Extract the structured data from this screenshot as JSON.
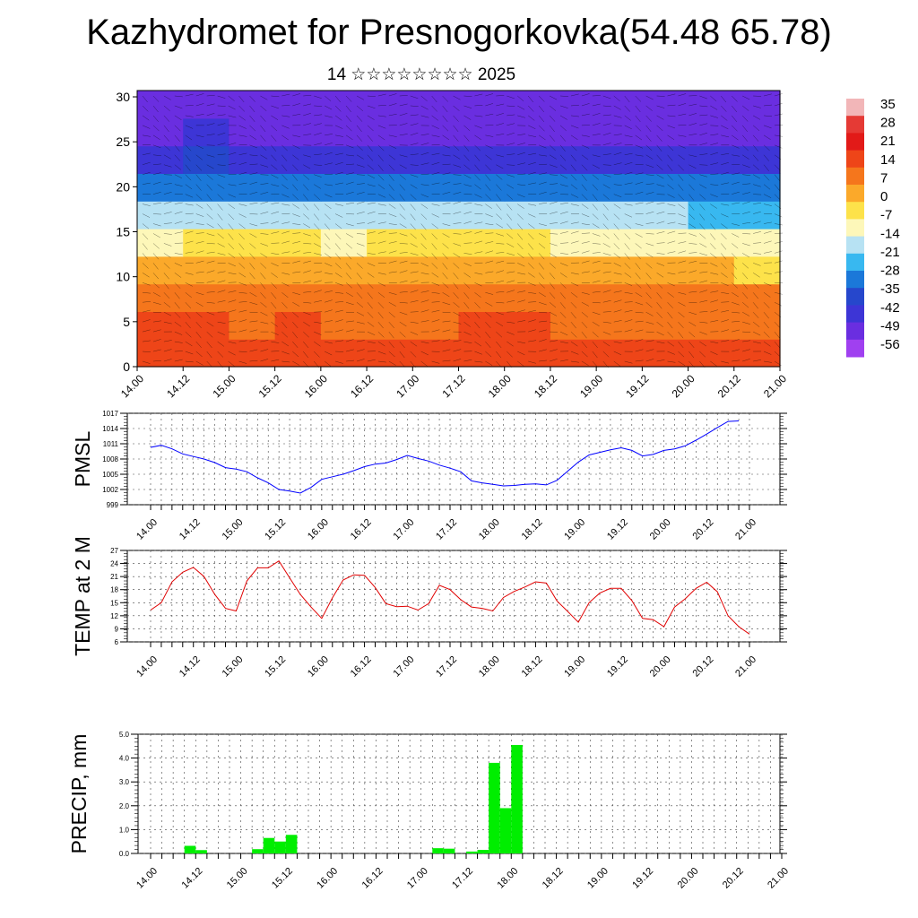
{
  "title": "Kazhydromet for Presnogorkovka(54.48 65.78)",
  "subtitle": "14 ☆☆☆☆☆☆☆☆ 2025",
  "chart_data": [
    {
      "type": "heatmap",
      "name": "cross-section",
      "x_ticks": [
        "14.00",
        "14.12",
        "15.00",
        "15.12",
        "16.00",
        "16.12",
        "17.00",
        "17.12",
        "18.00",
        "18.12",
        "19.00",
        "19.12",
        "20.00",
        "20.12",
        "21.00"
      ],
      "y_ticks": [
        "0",
        "5",
        "10",
        "15",
        "20",
        "25",
        "30"
      ],
      "ylim": [
        0,
        30.7
      ],
      "colorbar_labels": [
        "35",
        "28",
        "21",
        "14",
        "7",
        "0",
        "-7",
        "-14",
        "-21",
        "-28",
        "-35",
        "-42",
        "-49",
        "-56"
      ],
      "colorbar_colors": [
        "#f2b6b8",
        "#e53a35",
        "#e21a18",
        "#ee4518",
        "#f5761c",
        "#fba92a",
        "#fde24a",
        "#fdf7b9",
        "#b7e2f3",
        "#38b8f0",
        "#1b78d9",
        "#2647cc",
        "#3d35d6",
        "#6a2ee0",
        "#a040f0"
      ],
      "temp_grid": [
        [
          18,
          20,
          17,
          19,
          16,
          18,
          17,
          18,
          19,
          17,
          16,
          18,
          17,
          16
        ],
        [
          14,
          15,
          13,
          14,
          12,
          13,
          13,
          14,
          15,
          13,
          12,
          13,
          12,
          12
        ],
        [
          8,
          9,
          8,
          9,
          8,
          8,
          9,
          9,
          9,
          8,
          8,
          8,
          7,
          7
        ],
        [
          0,
          1,
          1,
          1,
          0,
          1,
          1,
          1,
          1,
          0,
          0,
          0,
          0,
          -1
        ],
        [
          -8,
          -7,
          -7,
          -7,
          -8,
          -7,
          -7,
          -7,
          -7,
          -8,
          -8,
          -9,
          -10,
          -11
        ],
        [
          -20,
          -18,
          -18,
          -19,
          -19,
          -18,
          -18,
          -18,
          -18,
          -19,
          -20,
          -21,
          -22,
          -22
        ],
        [
          -32,
          -30,
          -31,
          -31,
          -32,
          -31,
          -30,
          -30,
          -31,
          -32,
          -33,
          -34,
          -34,
          -35
        ],
        [
          -44,
          -42,
          -43,
          -44,
          -45,
          -44,
          -43,
          -43,
          -44,
          -44,
          -45,
          -46,
          -46,
          -47
        ],
        [
          -50,
          -49,
          -50,
          -51,
          -52,
          -51,
          -50,
          -50,
          -51,
          -51,
          -52,
          -52,
          -53,
          -53
        ],
        [
          -54,
          -53,
          -54,
          -55,
          -55,
          -55,
          -54,
          -54,
          -55,
          -55,
          -55,
          -56,
          -56,
          -56
        ]
      ]
    },
    {
      "type": "line",
      "name": "pmsl",
      "ylabel": "PMSL",
      "yticks": [
        "1017",
        "1014",
        "1011",
        "1008",
        "1005",
        "1002",
        "999"
      ],
      "ylim": [
        999,
        1017
      ],
      "x_ticks": [
        "14.00",
        "14.12",
        "15.00",
        "15.12",
        "16.00",
        "16.12",
        "17.00",
        "17.12",
        "18.00",
        "18.12",
        "19.00",
        "19.12",
        "20.00",
        "20.12",
        "21.00"
      ],
      "color": "#0000ff",
      "values": [
        1010.3,
        1010.7,
        1010,
        1009,
        1008.5,
        1008,
        1007.3,
        1006.3,
        1006,
        1005.5,
        1004.3,
        1003.3,
        1002,
        1001.7,
        1001.3,
        1002.4,
        1004,
        1004.5,
        1005,
        1005.7,
        1006.5,
        1007,
        1007.2,
        1007.9,
        1008.7,
        1008.1,
        1007.6,
        1006.8,
        1006.2,
        1005.5,
        1003.7,
        1003.3,
        1003,
        1002.7,
        1002.8,
        1003,
        1003.1,
        1002.9,
        1003.8,
        1005.6,
        1007.4,
        1008.8,
        1009.3,
        1009.8,
        1010.2,
        1009.7,
        1008.6,
        1008.9,
        1009.7,
        1010,
        1010.6,
        1011.7,
        1012.9,
        1014.2,
        1015.4,
        1015.5
      ]
    },
    {
      "type": "line",
      "name": "temp2m",
      "ylabel": "TEMP at 2 M",
      "yticks": [
        "27",
        "24",
        "21",
        "18",
        "15",
        "12",
        "9",
        "6"
      ],
      "ylim": [
        6,
        27
      ],
      "x_ticks": [
        "14.00",
        "14.12",
        "15.00",
        "15.12",
        "16.00",
        "16.12",
        "17.00",
        "17.12",
        "18.00",
        "18.12",
        "19.00",
        "19.12",
        "20.00",
        "20.12",
        "21.00"
      ],
      "color": "#e00000",
      "values": [
        13.3,
        15,
        19.8,
        22,
        23.1,
        21,
        16.9,
        13.7,
        13.1,
        20,
        23,
        23,
        24.6,
        20.7,
        16.9,
        14,
        11.4,
        16.1,
        20.2,
        21.4,
        21.3,
        18.5,
        14.8,
        14.1,
        14.2,
        13.3,
        14.8,
        19,
        18,
        15.7,
        14,
        13.7,
        13.1,
        16.2,
        17.6,
        18.6,
        19.8,
        19.5,
        15.4,
        13,
        10.5,
        15,
        17.2,
        18.3,
        18.3,
        15.5,
        11.4,
        11.1,
        9.5,
        14,
        15.9,
        18.3,
        19.7,
        17.5,
        12,
        9.5,
        7.8
      ]
    },
    {
      "type": "bar",
      "name": "precip",
      "ylabel": "PRECIP, mm",
      "yticks": [
        "5.0",
        "4.0",
        "3.0",
        "2.0",
        "1.0",
        "0.0"
      ],
      "ylim": [
        0,
        5
      ],
      "x_ticks": [
        "14.00",
        "14.12",
        "15.00",
        "15.12",
        "16.00",
        "16.12",
        "17.00",
        "17.12",
        "18.00",
        "18.12",
        "19.00",
        "19.12",
        "20.00",
        "20.12",
        "21.00"
      ],
      "color": "#00ee00",
      "values": [
        0,
        0,
        0,
        0.32,
        0.14,
        0,
        0,
        0,
        0,
        0.18,
        0.65,
        0.5,
        0.78,
        0,
        0,
        0,
        0,
        0,
        0,
        0,
        0,
        0,
        0,
        0,
        0,
        0.22,
        0.2,
        0,
        0.08,
        0.15,
        3.8,
        1.9,
        4.55,
        0,
        0,
        0,
        0,
        0,
        0,
        0,
        0,
        0,
        0,
        0,
        0,
        0,
        0,
        0,
        0,
        0,
        0,
        0,
        0,
        0,
        0,
        0
      ]
    }
  ]
}
